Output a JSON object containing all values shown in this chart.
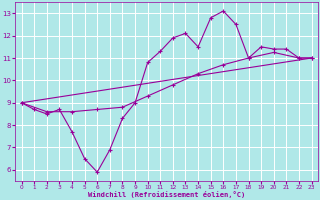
{
  "xlabel": "Windchill (Refroidissement éolien,°C)",
  "bg_color": "#b0e8e8",
  "line_color": "#990099",
  "grid_color": "#ffffff",
  "xlim": [
    -0.5,
    23.5
  ],
  "ylim": [
    5.5,
    13.5
  ],
  "xticks": [
    0,
    1,
    2,
    3,
    4,
    5,
    6,
    7,
    8,
    9,
    10,
    11,
    12,
    13,
    14,
    15,
    16,
    17,
    18,
    19,
    20,
    21,
    22,
    23
  ],
  "yticks": [
    6,
    7,
    8,
    9,
    10,
    11,
    12,
    13
  ],
  "line1_x": [
    0,
    1,
    2,
    3,
    4,
    5,
    6,
    7,
    8,
    9,
    10,
    11,
    12,
    13,
    14,
    15,
    16,
    17,
    18,
    19,
    20,
    21,
    22,
    23
  ],
  "line1_y": [
    9.0,
    8.7,
    8.5,
    8.7,
    7.7,
    6.5,
    5.9,
    6.9,
    8.3,
    9.0,
    10.8,
    11.3,
    11.9,
    12.1,
    11.5,
    12.8,
    13.1,
    12.5,
    11.0,
    11.5,
    11.4,
    11.4,
    11.0,
    11.0
  ],
  "line2_x": [
    0,
    2,
    4,
    6,
    8,
    10,
    12,
    14,
    16,
    18,
    20,
    22,
    23
  ],
  "line2_y": [
    9.0,
    8.6,
    8.6,
    8.7,
    8.8,
    9.3,
    9.8,
    10.3,
    10.7,
    11.0,
    11.25,
    11.0,
    11.0
  ],
  "line3_x": [
    0,
    23
  ],
  "line3_y": [
    9.0,
    11.0
  ]
}
